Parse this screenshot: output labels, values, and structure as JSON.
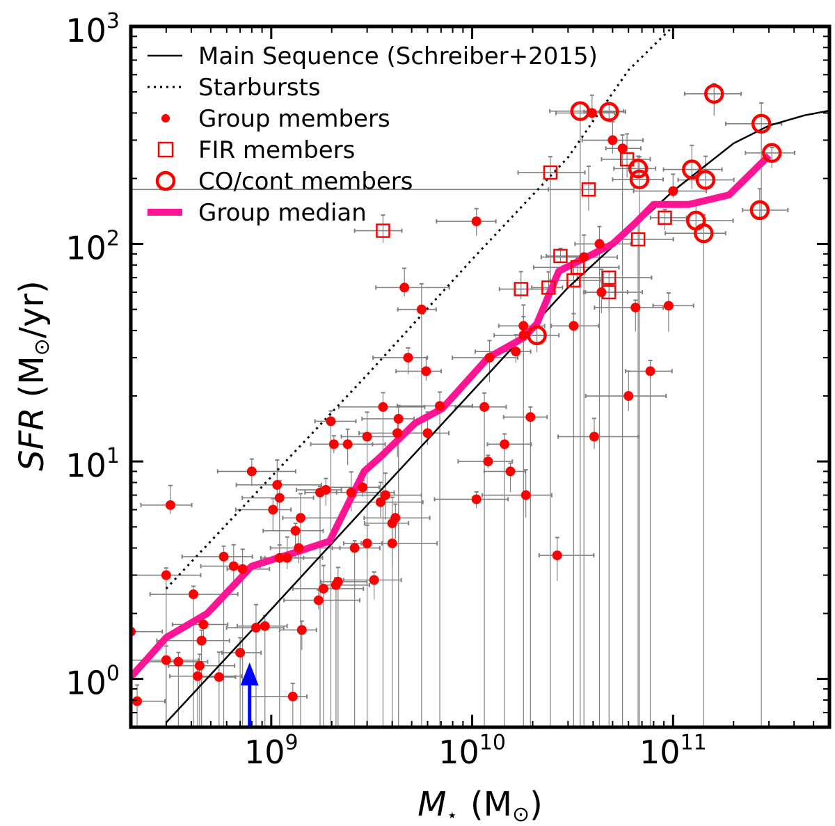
{
  "chart_data": {
    "type": "scatter",
    "xscale": "log",
    "yscale": "log",
    "xlim": [
      200000000,
      600000000000
    ],
    "ylim": [
      0.6,
      1000
    ],
    "xlabel_main": "M",
    "xlabel_sub": "⋆",
    "xlabel_unit": "(M",
    "xlabel_unit_sub": "⊙",
    "xlabel_close": ")",
    "ylabel_main": "SFR",
    "ylabel_unit": "(M",
    "ylabel_unit_sub": "⊙",
    "ylabel_close": "/yr)",
    "xticks": [
      {
        "value": 1000000000,
        "base": "10",
        "exp": "9"
      },
      {
        "value": 10000000000,
        "base": "10",
        "exp": "10"
      },
      {
        "value": 100000000000,
        "base": "10",
        "exp": "11"
      }
    ],
    "yticks": [
      {
        "value": 1,
        "base": "10",
        "exp": "0"
      },
      {
        "value": 10,
        "base": "10",
        "exp": "1"
      },
      {
        "value": 100,
        "base": "10",
        "exp": "2"
      },
      {
        "value": 1000,
        "base": "10",
        "exp": "3"
      }
    ],
    "legend": [
      {
        "label": "Main Sequence (Schreiber+2015)",
        "style": "solid-line"
      },
      {
        "label": "Starbursts",
        "style": "dotted-line"
      },
      {
        "label": "Group members",
        "style": "dot"
      },
      {
        "label": "FIR  members",
        "style": "square"
      },
      {
        "label": "CO/cont members",
        "style": "circle"
      },
      {
        "label": "Group median",
        "style": "thick-line"
      }
    ],
    "colors": {
      "points": "#ff0000",
      "median": "#ff1493",
      "errorbar": "#808080",
      "arrow": "#0000ff",
      "lines": "#000000"
    },
    "main_sequence": [
      [
        300000000,
        0.63
      ],
      [
        1000000000,
        2.09
      ],
      [
        3000000000,
        6.3
      ],
      [
        10000000000,
        21
      ],
      [
        30000000000,
        63
      ],
      [
        100000000000,
        175
      ],
      [
        200000000000,
        290
      ],
      [
        300000000000,
        350
      ],
      [
        450000000000,
        390
      ],
      [
        600000000000,
        410
      ]
    ],
    "starbursts": [
      [
        300000000,
        2.6
      ],
      [
        1000000000,
        8.5
      ],
      [
        3000000000,
        25
      ],
      [
        10000000000,
        85
      ],
      [
        30000000000,
        250
      ],
      [
        60000000000,
        630
      ],
      [
        100000000000,
        1000
      ]
    ],
    "median": [
      [
        200000000,
        1.02
      ],
      [
        300000000,
        1.55
      ],
      [
        480000000,
        2.0
      ],
      [
        800000000,
        3.3
      ],
      [
        1300000000,
        3.8
      ],
      [
        1950000000,
        4.3
      ],
      [
        2900000000,
        9.0
      ],
      [
        3500000000,
        10.5
      ],
      [
        5200000000,
        15
      ],
      [
        7100000000,
        17.5
      ],
      [
        12000000000,
        30
      ],
      [
        18000000000,
        37
      ],
      [
        21000000000,
        43
      ],
      [
        27000000000,
        75
      ],
      [
        40000000000,
        90
      ],
      [
        50000000000,
        100
      ],
      [
        65000000000,
        125
      ],
      [
        80000000000,
        152
      ],
      [
        120000000000,
        152
      ],
      [
        190000000000,
        168
      ],
      [
        300000000000,
        255
      ]
    ],
    "members": [
      [
        200000000.0,
        1.65
      ],
      [
        215000000.0,
        0.79
      ],
      [
        300000000.0,
        1.22
      ],
      [
        300000000.0,
        3.0
      ],
      [
        315000000.0,
        6.3
      ],
      [
        345000000.0,
        1.2
      ],
      [
        410000000.0,
        2.45
      ],
      [
        430000000.0,
        1.03
      ],
      [
        440000000.0,
        1.15
      ],
      [
        450000000.0,
        1.5
      ],
      [
        460000000.0,
        1.78
      ],
      [
        550000000.0,
        1.02
      ],
      [
        580000000.0,
        3.65
      ],
      [
        650000000.0,
        3.3
      ],
      [
        700000000.0,
        1.32
      ],
      [
        720000000.0,
        3.2
      ],
      [
        800000000.0,
        9.0
      ],
      [
        840000000.0,
        1.72
      ],
      [
        930000000.0,
        1.75
      ],
      [
        1020000000.0,
        6.0
      ],
      [
        1070000000.0,
        7.8
      ],
      [
        1100000000.0,
        6.8
      ],
      [
        1100000000.0,
        3.6
      ],
      [
        1200000000.0,
        3.6
      ],
      [
        1280000000.0,
        0.83
      ],
      [
        1320000000.0,
        4.8
      ],
      [
        1370000000.0,
        4.0
      ],
      [
        1400000000.0,
        5.5
      ],
      [
        1420000000.0,
        1.68
      ],
      [
        1720000000.0,
        2.3
      ],
      [
        1750000000.0,
        7.2
      ],
      [
        1820000000.0,
        2.6
      ],
      [
        1870000000.0,
        7.4
      ],
      [
        1980000000.0,
        15.3
      ],
      [
        2050000000.0,
        12.0
      ],
      [
        2100000000.0,
        2.7
      ],
      [
        2150000000.0,
        2.8
      ],
      [
        2400000000.0,
        12
      ],
      [
        2500000000.0,
        7.2
      ],
      [
        2600000000.0,
        4.0
      ],
      [
        2850000000.0,
        7.6
      ],
      [
        3000000000.0,
        4.2
      ],
      [
        3000000000.0,
        13
      ],
      [
        3250000000.0,
        2.85
      ],
      [
        3500000000.0,
        6.5
      ],
      [
        3600000000.0,
        17.8
      ],
      [
        3700000000.0,
        7.0
      ],
      [
        4000000000.0,
        4.2
      ],
      [
        4000000000.0,
        5.2
      ],
      [
        4150000000.0,
        5.5
      ],
      [
        4250000000.0,
        13.5
      ],
      [
        4300000000.0,
        15.7
      ],
      [
        4600000000.0,
        63
      ],
      [
        4800000000.0,
        30
      ],
      [
        5600000000.0,
        50
      ],
      [
        5900000000.0,
        26
      ],
      [
        6000000000.0,
        13.5
      ],
      [
        6900000000.0,
        18
      ],
      [
        10500000000.0,
        127
      ],
      [
        10500000000.0,
        6.7
      ],
      [
        11500000000.0,
        17.8
      ],
      [
        12000000000.0,
        10
      ],
      [
        12200000000.0,
        30
      ],
      [
        14500000000.0,
        12
      ],
      [
        15500000000.0,
        9
      ],
      [
        16500000000.0,
        32
      ],
      [
        18000000000.0,
        42
      ],
      [
        18000000000.0,
        38
      ],
      [
        18500000000.0,
        7
      ],
      [
        19500000000.0,
        16
      ],
      [
        26500000000.0,
        3.7
      ],
      [
        32000000000.0,
        42
      ],
      [
        36000000000.0,
        87
      ],
      [
        39500000000.0,
        400
      ],
      [
        40500000000.0,
        13
      ],
      [
        43000000000.0,
        100
      ],
      [
        44000000000.0,
        60
      ],
      [
        50000000000.0,
        300
      ],
      [
        56000000000.0,
        275
      ],
      [
        60000000000.0,
        20
      ],
      [
        65000000000.0,
        51
      ],
      [
        77000000000.0,
        26
      ],
      [
        95000000000.0,
        52
      ],
      [
        100000000000.0,
        175
      ]
    ],
    "fir_members": [
      [
        3600000000.0,
        115
      ],
      [
        17500000000.0,
        62
      ],
      [
        24500000000.0,
        213
      ],
      [
        24000000000.0,
        63
      ],
      [
        27500000000.0,
        88
      ],
      [
        32000000000.0,
        68
      ],
      [
        33500000000.0,
        78
      ],
      [
        38000000000.0,
        178
      ],
      [
        48000000000.0,
        70
      ],
      [
        48000000000.0,
        60
      ],
      [
        59000000000.0,
        245
      ],
      [
        67000000000.0,
        105
      ],
      [
        91000000000.0,
        132
      ]
    ],
    "co_members": [
      [
        21000000000.0,
        38
      ],
      [
        34500000000.0,
        408
      ],
      [
        48000000000.0,
        405
      ],
      [
        67000000000.0,
        222
      ],
      [
        68000000000.0,
        198
      ],
      [
        124000000000.0,
        220
      ],
      [
        130000000000.0,
        128
      ],
      [
        142000000000.0,
        112
      ],
      [
        145000000000.0,
        197
      ],
      [
        160000000000.0,
        490
      ],
      [
        275000000000.0,
        357
      ],
      [
        270000000000.0,
        143
      ],
      [
        310000000000.0,
        262
      ]
    ],
    "arrow_x": 780000000
  }
}
